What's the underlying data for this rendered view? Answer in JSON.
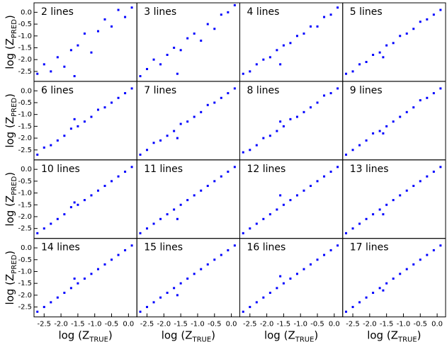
{
  "chart_data": [
    {
      "type": "scatter",
      "title": "2 lines",
      "color": "#0000ff",
      "xlim": [
        -2.8,
        0.25
      ],
      "ylim": [
        -2.92,
        0.4
      ],
      "x": [
        -2.7,
        -2.5,
        -2.3,
        -2.1,
        -1.9,
        -1.7,
        -1.5,
        -1.3,
        -1.1,
        -0.9,
        -0.7,
        -0.5,
        -0.3,
        -0.1,
        0.1,
        -1.6
      ],
      "values": [
        -2.6,
        -2.2,
        -2.5,
        -1.9,
        -2.3,
        -1.6,
        -1.4,
        -0.9,
        -1.7,
        -0.8,
        -0.3,
        -0.6,
        0.1,
        -0.2,
        0.2,
        -2.7
      ],
      "yticks": [
        {
          "value": 0,
          "label": "0.0"
        },
        -0.5,
        {
          "value": -1,
          "label": "-1.0"
        },
        -1.5,
        {
          "value": -2,
          "label": "-2.0"
        },
        -2.5
      ],
      "ylabel": [
        "log (Z",
        "PRED",
        ")"
      ]
    },
    {
      "type": "scatter",
      "title": "3 lines",
      "color": "#0000ff",
      "xlim": [
        -2.8,
        0.25
      ],
      "ylim": [
        -2.92,
        0.4
      ],
      "x": [
        -2.7,
        -2.5,
        -2.3,
        -2.1,
        -1.9,
        -1.7,
        -1.5,
        -1.3,
        -1.1,
        -0.9,
        -0.7,
        -0.5,
        -0.3,
        -0.1,
        0.1,
        -1.6
      ],
      "values": [
        -2.7,
        -2.4,
        -2.0,
        -2.2,
        -1.8,
        -1.5,
        -1.6,
        -1.1,
        -0.9,
        -1.2,
        -0.5,
        -0.7,
        -0.1,
        0.0,
        0.3,
        -2.6
      ]
    },
    {
      "type": "scatter",
      "title": "4 lines",
      "color": "#0000ff",
      "xlim": [
        -2.8,
        0.25
      ],
      "ylim": [
        -2.92,
        0.4
      ],
      "x": [
        -2.7,
        -2.5,
        -2.3,
        -2.1,
        -1.9,
        -1.7,
        -1.5,
        -1.3,
        -1.1,
        -0.9,
        -0.7,
        -0.5,
        -0.3,
        -0.1,
        0.1,
        -1.6
      ],
      "values": [
        -2.6,
        -2.5,
        -2.2,
        -2.0,
        -1.9,
        -1.6,
        -1.4,
        -1.3,
        -1.0,
        -0.9,
        -0.6,
        -0.6,
        -0.2,
        -0.1,
        0.2,
        -2.2
      ]
    },
    {
      "type": "scatter",
      "title": "5 lines",
      "color": "#0000ff",
      "xlim": [
        -2.8,
        0.25
      ],
      "ylim": [
        -2.92,
        0.4
      ],
      "x": [
        -2.7,
        -2.5,
        -2.3,
        -2.1,
        -1.9,
        -1.7,
        -1.5,
        -1.3,
        -1.1,
        -0.9,
        -0.7,
        -0.5,
        -0.3,
        -0.1,
        0.1,
        -1.6
      ],
      "values": [
        -2.6,
        -2.5,
        -2.2,
        -2.1,
        -1.8,
        -1.7,
        -1.4,
        -1.3,
        -1.0,
        -0.9,
        -0.7,
        -0.4,
        -0.3,
        -0.1,
        0.1,
        -1.9
      ]
    },
    {
      "type": "scatter",
      "title": "6 lines",
      "color": "#0000ff",
      "xlim": [
        -2.8,
        0.25
      ],
      "ylim": [
        -2.92,
        0.4
      ],
      "x": [
        -2.7,
        -2.5,
        -2.3,
        -2.1,
        -1.9,
        -1.7,
        -1.5,
        -1.3,
        -1.1,
        -0.9,
        -0.7,
        -0.5,
        -0.3,
        -0.1,
        0.1,
        -1.6
      ],
      "values": [
        -2.7,
        -2.4,
        -2.3,
        -2.1,
        -1.9,
        -1.6,
        -1.5,
        -1.3,
        -1.1,
        -0.8,
        -0.7,
        -0.5,
        -0.3,
        -0.1,
        0.1,
        -1.2
      ],
      "yticks": [
        {
          "value": 0,
          "label": "0.0"
        },
        -0.5,
        {
          "value": -1,
          "label": "-1.0"
        },
        -1.5,
        {
          "value": -2,
          "label": "-2.0"
        },
        -2.5
      ],
      "ylabel": [
        "log (Z",
        "PRED",
        ")"
      ]
    },
    {
      "type": "scatter",
      "title": "7 lines",
      "color": "#0000ff",
      "xlim": [
        -2.8,
        0.25
      ],
      "ylim": [
        -2.92,
        0.4
      ],
      "x": [
        -2.7,
        -2.5,
        -2.3,
        -2.1,
        -1.9,
        -1.7,
        -1.5,
        -1.3,
        -1.1,
        -0.9,
        -0.7,
        -0.5,
        -0.3,
        -0.1,
        0.1,
        -1.6
      ],
      "values": [
        -2.7,
        -2.5,
        -2.2,
        -2.1,
        -1.9,
        -1.7,
        -1.4,
        -1.3,
        -1.1,
        -0.9,
        -0.6,
        -0.5,
        -0.3,
        -0.1,
        0.1,
        -2.0
      ]
    },
    {
      "type": "scatter",
      "title": "8 lines",
      "color": "#0000ff",
      "xlim": [
        -2.8,
        0.25
      ],
      "ylim": [
        -2.92,
        0.4
      ],
      "x": [
        -2.7,
        -2.5,
        -2.3,
        -2.1,
        -1.9,
        -1.7,
        -1.5,
        -1.3,
        -1.1,
        -0.9,
        -0.7,
        -0.5,
        -0.3,
        -0.1,
        0.1,
        -1.6
      ],
      "values": [
        -2.6,
        -2.5,
        -2.3,
        -2.0,
        -1.9,
        -1.7,
        -1.5,
        -1.2,
        -1.1,
        -0.9,
        -0.7,
        -0.5,
        -0.2,
        -0.1,
        0.1,
        -1.3
      ]
    },
    {
      "type": "scatter",
      "title": "9 lines",
      "color": "#0000ff",
      "xlim": [
        -2.8,
        0.25
      ],
      "ylim": [
        -2.92,
        0.4
      ],
      "x": [
        -2.7,
        -2.5,
        -2.3,
        -2.1,
        -1.9,
        -1.7,
        -1.5,
        -1.3,
        -1.1,
        -0.9,
        -0.7,
        -0.5,
        -0.3,
        -0.1,
        0.1,
        -1.6
      ],
      "values": [
        -2.7,
        -2.5,
        -2.3,
        -2.1,
        -1.8,
        -1.7,
        -1.5,
        -1.3,
        -1.1,
        -0.9,
        -0.7,
        -0.4,
        -0.3,
        -0.1,
        0.1,
        -1.8
      ]
    },
    {
      "type": "scatter",
      "title": "10 lines",
      "color": "#0000ff",
      "xlim": [
        -2.8,
        0.25
      ],
      "ylim": [
        -2.92,
        0.4
      ],
      "x": [
        -2.7,
        -2.5,
        -2.3,
        -2.1,
        -1.9,
        -1.7,
        -1.5,
        -1.3,
        -1.1,
        -0.9,
        -0.7,
        -0.5,
        -0.3,
        -0.1,
        0.1,
        -1.6
      ],
      "values": [
        -2.7,
        -2.5,
        -2.3,
        -2.1,
        -1.9,
        -1.6,
        -1.5,
        -1.3,
        -1.1,
        -0.9,
        -0.7,
        -0.5,
        -0.3,
        -0.1,
        0.1,
        -1.4
      ],
      "yticks": [
        {
          "value": 0,
          "label": "0.0"
        },
        -0.5,
        {
          "value": -1,
          "label": "-1.0"
        },
        -1.5,
        {
          "value": -2,
          "label": "-2.0"
        },
        -2.5
      ],
      "ylabel": [
        "log (Z",
        "PRED",
        ")"
      ]
    },
    {
      "type": "scatter",
      "title": "11 lines",
      "color": "#0000ff",
      "xlim": [
        -2.8,
        0.25
      ],
      "ylim": [
        -2.92,
        0.4
      ],
      "x": [
        -2.7,
        -2.5,
        -2.3,
        -2.1,
        -1.9,
        -1.7,
        -1.5,
        -1.3,
        -1.1,
        -0.9,
        -0.7,
        -0.5,
        -0.3,
        -0.1,
        0.1,
        -1.6
      ],
      "values": [
        -2.7,
        -2.5,
        -2.3,
        -2.1,
        -1.9,
        -1.7,
        -1.5,
        -1.3,
        -1.1,
        -0.9,
        -0.7,
        -0.5,
        -0.3,
        -0.1,
        0.1,
        -2.1
      ]
    },
    {
      "type": "scatter",
      "title": "12 lines",
      "color": "#0000ff",
      "xlim": [
        -2.8,
        0.25
      ],
      "ylim": [
        -2.92,
        0.4
      ],
      "x": [
        -2.7,
        -2.5,
        -2.3,
        -2.1,
        -1.9,
        -1.7,
        -1.5,
        -1.3,
        -1.1,
        -0.9,
        -0.7,
        -0.5,
        -0.3,
        -0.1,
        0.1,
        -1.6
      ],
      "values": [
        -2.7,
        -2.5,
        -2.3,
        -2.1,
        -1.9,
        -1.7,
        -1.5,
        -1.3,
        -1.1,
        -0.9,
        -0.7,
        -0.5,
        -0.3,
        -0.1,
        0.1,
        -1.1
      ]
    },
    {
      "type": "scatter",
      "title": "13 lines",
      "color": "#0000ff",
      "xlim": [
        -2.8,
        0.25
      ],
      "ylim": [
        -2.92,
        0.4
      ],
      "x": [
        -2.7,
        -2.5,
        -2.3,
        -2.1,
        -1.9,
        -1.7,
        -1.5,
        -1.3,
        -1.1,
        -0.9,
        -0.7,
        -0.5,
        -0.3,
        -0.1,
        0.1,
        -1.6
      ],
      "values": [
        -2.7,
        -2.5,
        -2.3,
        -2.1,
        -1.9,
        -1.7,
        -1.5,
        -1.3,
        -1.1,
        -0.9,
        -0.7,
        -0.5,
        -0.3,
        -0.1,
        0.1,
        -1.9
      ]
    },
    {
      "type": "scatter",
      "title": "14 lines",
      "color": "#0000ff",
      "xlim": [
        -2.8,
        0.25
      ],
      "ylim": [
        -2.92,
        0.4
      ],
      "x": [
        -2.7,
        -2.5,
        -2.3,
        -2.1,
        -1.9,
        -1.7,
        -1.5,
        -1.3,
        -1.1,
        -0.9,
        -0.7,
        -0.5,
        -0.3,
        -0.1,
        0.1,
        -1.6
      ],
      "values": [
        -2.7,
        -2.5,
        -2.3,
        -2.1,
        -1.9,
        -1.7,
        -1.5,
        -1.3,
        -1.1,
        -0.9,
        -0.7,
        -0.5,
        -0.3,
        -0.1,
        0.1,
        -1.3
      ],
      "yticks": [
        {
          "value": 0,
          "label": "0.0"
        },
        -0.5,
        {
          "value": -1,
          "label": "-1.0"
        },
        -1.5,
        {
          "value": -2,
          "label": "-2.0"
        },
        -2.5
      ],
      "ylabel": [
        "log (Z",
        "PRED",
        ")"
      ],
      "xticks": [
        -2.5,
        {
          "value": -2,
          "label": "-2.0"
        },
        -1.5,
        {
          "value": -1,
          "label": "-1.0"
        },
        -0.5,
        {
          "value": 0,
          "label": "0.0"
        }
      ],
      "xlabel": [
        "log (Z",
        "TRUE",
        ")"
      ]
    },
    {
      "type": "scatter",
      "title": "15 lines",
      "color": "#0000ff",
      "xlim": [
        -2.8,
        0.25
      ],
      "ylim": [
        -2.92,
        0.4
      ],
      "x": [
        -2.7,
        -2.5,
        -2.3,
        -2.1,
        -1.9,
        -1.7,
        -1.5,
        -1.3,
        -1.1,
        -0.9,
        -0.7,
        -0.5,
        -0.3,
        -0.1,
        0.1,
        -1.6
      ],
      "values": [
        -2.7,
        -2.5,
        -2.3,
        -2.1,
        -1.9,
        -1.7,
        -1.5,
        -1.3,
        -1.1,
        -0.9,
        -0.7,
        -0.5,
        -0.3,
        -0.1,
        0.1,
        -2.0
      ],
      "xticks": [
        -2.5,
        {
          "value": -2,
          "label": "-2.0"
        },
        -1.5,
        {
          "value": -1,
          "label": "-1.0"
        },
        -0.5,
        {
          "value": 0,
          "label": "0.0"
        }
      ],
      "xlabel": [
        "log (Z",
        "TRUE",
        ")"
      ]
    },
    {
      "type": "scatter",
      "title": "16 lines",
      "color": "#0000ff",
      "xlim": [
        -2.8,
        0.25
      ],
      "ylim": [
        -2.92,
        0.4
      ],
      "x": [
        -2.7,
        -2.5,
        -2.3,
        -2.1,
        -1.9,
        -1.7,
        -1.5,
        -1.3,
        -1.1,
        -0.9,
        -0.7,
        -0.5,
        -0.3,
        -0.1,
        0.1,
        -1.6
      ],
      "values": [
        -2.7,
        -2.5,
        -2.3,
        -2.1,
        -1.9,
        -1.7,
        -1.5,
        -1.3,
        -1.1,
        -0.9,
        -0.7,
        -0.5,
        -0.3,
        -0.1,
        0.1,
        -1.2
      ],
      "xticks": [
        -2.5,
        {
          "value": -2,
          "label": "-2.0"
        },
        -1.5,
        {
          "value": -1,
          "label": "-1.0"
        },
        -0.5,
        {
          "value": 0,
          "label": "0.0"
        }
      ],
      "xlabel": [
        "log (Z",
        "TRUE",
        ")"
      ]
    },
    {
      "type": "scatter",
      "title": "17 lines",
      "color": "#0000ff",
      "xlim": [
        -2.8,
        0.25
      ],
      "ylim": [
        -2.92,
        0.4
      ],
      "x": [
        -2.7,
        -2.5,
        -2.3,
        -2.1,
        -1.9,
        -1.7,
        -1.5,
        -1.3,
        -1.1,
        -0.9,
        -0.7,
        -0.5,
        -0.3,
        -0.1,
        0.1,
        -1.6
      ],
      "values": [
        -2.7,
        -2.5,
        -2.3,
        -2.1,
        -1.9,
        -1.7,
        -1.5,
        -1.3,
        -1.1,
        -0.9,
        -0.7,
        -0.5,
        -0.3,
        -0.1,
        0.1,
        -1.8
      ],
      "xticks": [
        -2.5,
        {
          "value": -2,
          "label": "-2.0"
        },
        -1.5,
        {
          "value": -1,
          "label": "-1.0"
        },
        -0.5,
        {
          "value": 0,
          "label": "0.0"
        }
      ],
      "xlabel": [
        "log (Z",
        "TRUE",
        ")"
      ]
    }
  ]
}
